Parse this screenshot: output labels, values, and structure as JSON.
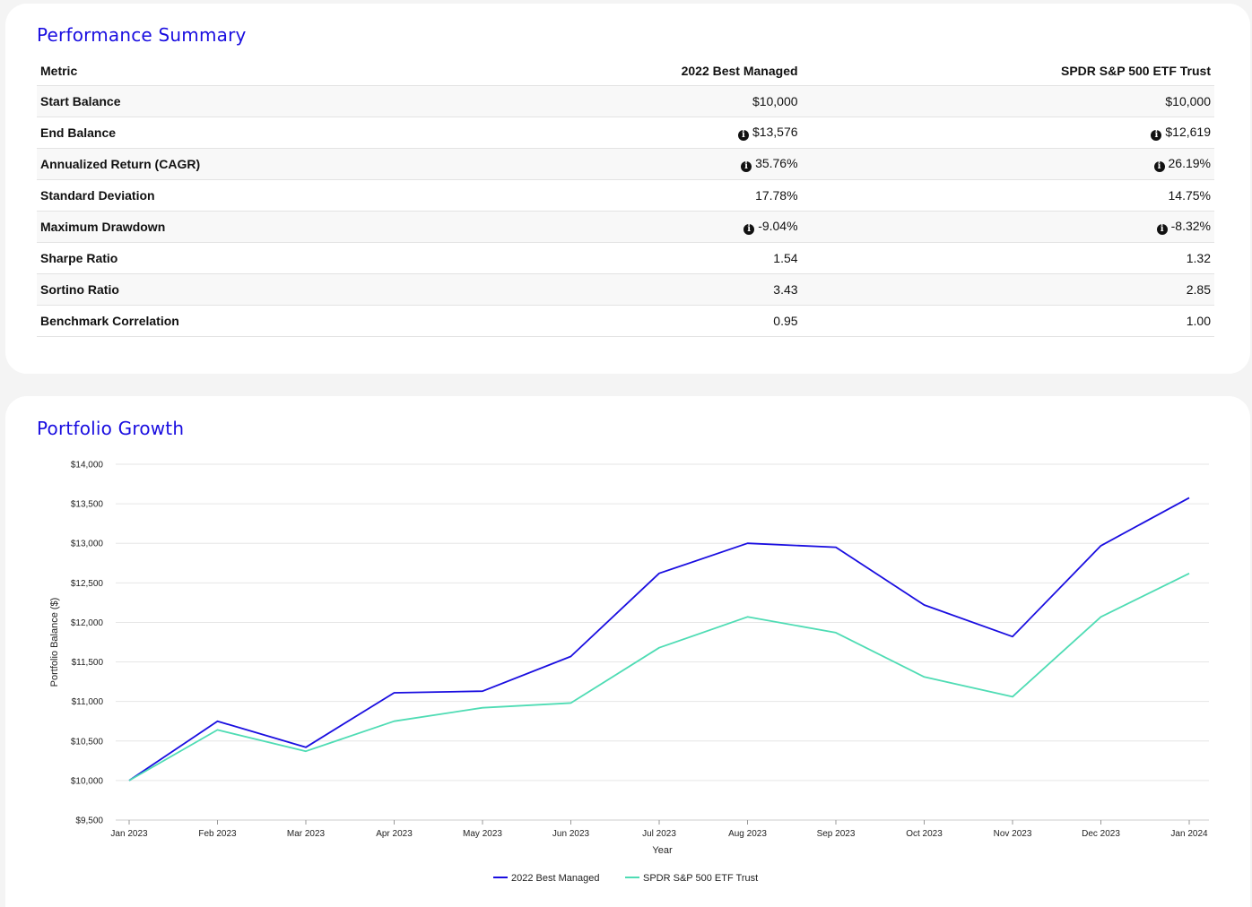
{
  "summary": {
    "title": "Performance Summary",
    "columns": [
      "Metric",
      "2022 Best Managed",
      "SPDR S&P 500 ETF Trust"
    ],
    "rows": [
      {
        "metric": "Start Balance",
        "a": "$10,000",
        "b": "$10,000",
        "info": false
      },
      {
        "metric": "End Balance",
        "a": "$13,576",
        "b": "$12,619",
        "info": true
      },
      {
        "metric": "Annualized Return (CAGR)",
        "a": "35.76%",
        "b": "26.19%",
        "info": true
      },
      {
        "metric": "Standard Deviation",
        "a": "17.78%",
        "b": "14.75%",
        "info": false
      },
      {
        "metric": "Maximum Drawdown",
        "a": "-9.04%",
        "b": "-8.32%",
        "info": true
      },
      {
        "metric": "Sharpe Ratio",
        "a": "1.54",
        "b": "1.32",
        "info": false
      },
      {
        "metric": "Sortino Ratio",
        "a": "3.43",
        "b": "2.85",
        "info": false
      },
      {
        "metric": "Benchmark Correlation",
        "a": "0.95",
        "b": "1.00",
        "info": false
      }
    ],
    "info_icon": "info-circle-icon"
  },
  "growth": {
    "title": "Portfolio Growth"
  },
  "chart_data": {
    "type": "line",
    "title": "",
    "xlabel": "Year",
    "ylabel": "Portfolio Balance ($)",
    "ylim": [
      9500,
      14000
    ],
    "yticks": [
      9500,
      10000,
      10500,
      11000,
      11500,
      12000,
      12500,
      13000,
      13500,
      14000
    ],
    "ytick_labels": [
      "$9,500",
      "$10,000",
      "$10,500",
      "$11,000",
      "$11,500",
      "$12,000",
      "$12,500",
      "$13,000",
      "$13,500",
      "$14,000"
    ],
    "x": [
      "Jan 2023",
      "Feb 2023",
      "Mar 2023",
      "Apr 2023",
      "May 2023",
      "Jun 2023",
      "Jul 2023",
      "Aug 2023",
      "Sep 2023",
      "Oct 2023",
      "Nov 2023",
      "Dec 2023",
      "Jan 2024"
    ],
    "grid": true,
    "legend": "bottom-center",
    "series": [
      {
        "name": "2022 Best Managed",
        "color": "#1a0ee0",
        "values": [
          10000,
          10750,
          10420,
          11110,
          11130,
          11570,
          12620,
          13000,
          12950,
          12220,
          11820,
          12970,
          13576
        ]
      },
      {
        "name": "SPDR S&P 500 ETF Trust",
        "color": "#4fdcb4",
        "values": [
          10000,
          10640,
          10370,
          10750,
          10920,
          10980,
          11680,
          12070,
          11870,
          11310,
          11060,
          12070,
          12619
        ]
      }
    ]
  }
}
